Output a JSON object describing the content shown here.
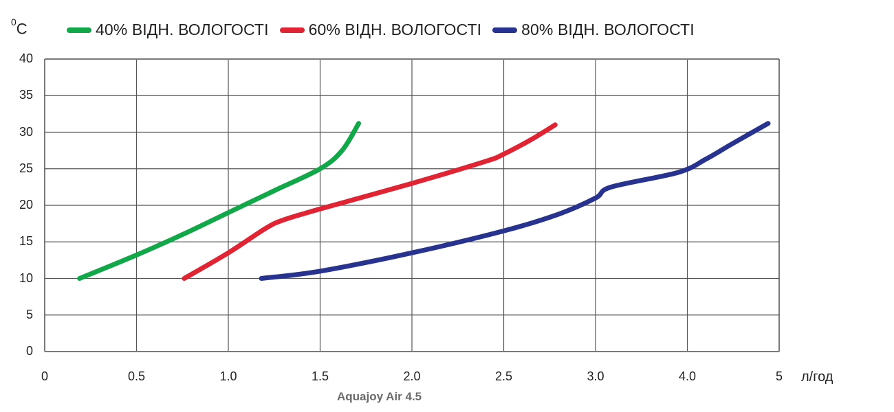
{
  "chart_data": {
    "type": "line",
    "title": "",
    "subtitle": "Aquajoy Air 4.5",
    "xlabel": "л/год",
    "ylabel": "0C",
    "ylabel_display": {
      "superscript": "0",
      "unit": "C"
    },
    "ylim": [
      0,
      40
    ],
    "yticks": [
      "0",
      "5",
      "10",
      "15",
      "20",
      "25",
      "30",
      "35",
      "40"
    ],
    "xticks": [
      "0",
      "0.5",
      "1.0",
      "1.5",
      "2.0",
      "2.5",
      "3.0",
      "4.0",
      "5"
    ],
    "xtick_note": "tick labels are evenly spaced but non-linear after 3.0 (3.0, 4.0, 5)",
    "grid": true,
    "grid_columns": 8,
    "grid_rows": 8,
    "legend_position": "top",
    "series": [
      {
        "name": "40% ВІДН. ВОЛОГОСТІ",
        "color": "#12a84a",
        "x": [
          0.19,
          0.5,
          0.75,
          1.0,
          1.25,
          1.5,
          1.62,
          1.71
        ],
        "y": [
          10,
          13.2,
          16,
          19,
          22,
          25,
          27.5,
          31.2
        ]
      },
      {
        "name": "60% ВІДН. ВОЛОГОСТІ",
        "color": "#e02434",
        "x": [
          0.76,
          1.0,
          1.2,
          1.3,
          1.5,
          2.0,
          2.4,
          2.5,
          2.65,
          2.78
        ],
        "y": [
          10,
          13.5,
          16.8,
          18,
          19.5,
          23,
          26,
          27,
          29,
          31
        ]
      },
      {
        "name": "80% ВІДН. ВОЛОГОСТІ",
        "color": "#27338e",
        "x": [
          1.18,
          1.5,
          2.0,
          2.5,
          2.8,
          3.0,
          3.17,
          3.9,
          4.2,
          4.5,
          4.88
        ],
        "y": [
          10,
          11,
          13.5,
          16.5,
          18.8,
          21,
          22.5,
          24.5,
          26.3,
          28.5,
          31.2
        ]
      }
    ]
  },
  "legend": {
    "items": [
      {
        "label": "40% ВІДН. ВОЛОГОСТІ",
        "color": "#12a84a"
      },
      {
        "label": "60% ВІДН. ВОЛОГОСТІ",
        "color": "#e02434"
      },
      {
        "label": "80% ВІДН. ВОЛОГОСТІ",
        "color": "#27338e"
      }
    ]
  },
  "axis": {
    "y_unit_sup": "0",
    "y_unit": "C",
    "x_unit": "л/год"
  },
  "caption": "Aquajoy Air 4.5"
}
